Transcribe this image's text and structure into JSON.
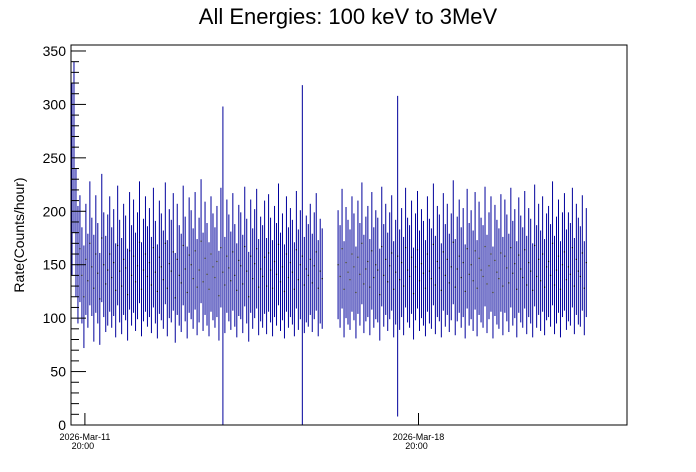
{
  "chart_data": {
    "type": "line",
    "title": "All Energies:  100 keV to 3MeV",
    "xlabel": "",
    "ylabel": "Rate(Counts/hour)",
    "ylim": [
      0,
      355.6
    ],
    "yticks": [
      0,
      50,
      100,
      150,
      200,
      250,
      300,
      350
    ],
    "x_unit": "hours since 2026-Mar-11 20:00",
    "xlim": [
      -7,
      273
    ],
    "x_start": -7,
    "x_step": 1,
    "xticks": [
      {
        "x": 0,
        "label_date": "2026-Mar-11",
        "label_time": "20:00"
      },
      {
        "x": 168,
        "label_date": "2026-Mar-18",
        "label_time": "20:00"
      }
    ],
    "series_color": "#00009c",
    "marker_color": "#000000",
    "values": [
      230,
      260,
      180,
      150,
      165,
      140,
      120,
      155,
      135,
      170,
      148,
      128,
      160,
      142,
      118,
      175,
      150,
      132,
      145,
      160,
      138,
      152,
      126,
      168,
      144,
      130,
      155,
      147,
      122,
      163,
      140,
      158,
      134,
      149,
      171,
      127,
      145,
      160,
      139,
      152,
      131,
      166,
      143,
      125,
      157,
      148,
      136,
      170,
      128,
      151,
      144,
      162,
      119,
      155,
      140,
      133,
      168,
      146,
      124,
      159,
      150,
      137,
      163,
      129,
      145,
      172,
      134,
      156,
      141,
      127,
      160,
      148,
      138,
      153,
      121,
      166,
      143,
      131,
      158,
      147,
      135,
      162,
      140,
      126,
      154,
      149,
      132,
      167,
      144,
      120,
      158,
      137,
      151,
      165,
      129,
      146,
      139,
      157,
      130,
      161,
      145,
      128,
      153,
      141,
      169,
      134,
      148,
      125,
      160,
      138,
      152,
      143,
      127,
      164,
      136,
      150,
      158,
      131,
      146,
      140,
      155,
      133,
      149,
      162,
      128,
      144,
      137,
      null,
      null,
      null,
      null,
      null,
      null,
      null,
      150,
      139,
      165,
      127,
      152,
      143,
      136,
      160,
      148,
      124,
      157,
      141,
      170,
      132,
      146,
      153,
      129,
      163,
      138,
      150,
      145,
      122,
      167,
      140,
      155,
      134,
      149,
      161,
      127,
      143,
      158,
      136,
      152,
      130,
      166,
      145,
      139,
      157,
      123,
      148,
      164,
      135,
      151,
      142,
      128,
      160,
      144,
      137,
      169,
      131,
      153,
      147,
      126,
      162,
      140,
      155,
      133,
      148,
      171,
      129,
      146,
      158,
      138,
      152,
      125,
      165,
      141,
      150,
      135,
      163,
      128,
      156,
      145,
      139,
      167,
      132,
      149,
      160,
      124,
      154,
      143,
      137,
      161,
      130,
      158,
      147,
      133,
      166,
      142,
      151,
      127,
      159,
      146,
      138,
      164,
      131,
      152,
      144,
      126,
      168,
      139,
      155,
      135,
      160,
      129,
      148,
      153,
      140,
      170,
      131,
      145,
      158,
      127,
      150,
      162,
      136,
      148,
      141,
      166,
      130,
      155,
      144,
      139,
      161,
      128,
      152
    ],
    "errors": [
      90,
      80,
      60,
      55,
      50,
      45,
      48,
      52,
      44,
      58,
      46,
      50,
      55,
      47,
      43,
      60,
      49,
      45,
      52,
      54,
      47,
      50,
      44,
      56,
      48,
      45,
      52,
      49,
      43,
      55,
      47,
      53,
      46,
      50,
      57,
      44,
      48,
      54,
      47,
      51,
      45,
      56,
      48,
      44,
      53,
      50,
      46,
      57,
      45,
      51,
      48,
      55,
      42,
      52,
      47,
      46,
      56,
      49,
      43,
      54,
      51,
      47,
      55,
      45,
      49,
      58,
      46,
      53,
      48,
      44,
      54,
      50,
      47,
      52,
      42,
      56,
      155,
      45,
      53,
      50,
      46,
      55,
      48,
      44,
      52,
      50,
      46,
      56,
      49,
      42,
      53,
      47,
      51,
      56,
      45,
      49,
      48,
      53,
      45,
      55,
      49,
      45,
      52,
      48,
      57,
      46,
      50,
      44,
      54,
      47,
      51,
      49,
      44,
      55,
      47,
      51,
      160,
      45,
      50,
      48,
      52,
      46,
      50,
      55,
      45,
      49,
      47,
      0,
      0,
      0,
      0,
      0,
      0,
      0,
      51,
      48,
      56,
      45,
      52,
      49,
      47,
      54,
      50,
      43,
      53,
      48,
      57,
      46,
      49,
      52,
      45,
      55,
      47,
      51,
      49,
      43,
      56,
      48,
      52,
      46,
      50,
      54,
      45,
      49,
      150,
      47,
      51,
      46,
      56,
      49,
      48,
      53,
      43,
      50,
      55,
      47,
      51,
      49,
      45,
      54,
      49,
      47,
      57,
      46,
      52,
      50,
      44,
      55,
      48,
      52,
      46,
      50,
      58,
      45,
      49,
      53,
      47,
      51,
      44,
      56,
      48,
      51,
      47,
      55,
      45,
      53,
      49,
      48,
      56,
      46,
      50,
      54,
      43,
      52,
      49,
      47,
      55,
      46,
      53,
      50,
      46,
      56,
      49,
      51,
      45,
      54,
      50,
      47,
      55,
      46,
      51,
      49,
      44,
      57,
      48,
      52,
      47,
      54,
      45,
      50,
      52,
      48,
      58,
      46,
      50,
      53,
      45,
      49,
      55,
      47,
      51,
      48,
      56,
      45,
      52,
      50,
      47,
      54,
      44,
      51
    ]
  }
}
